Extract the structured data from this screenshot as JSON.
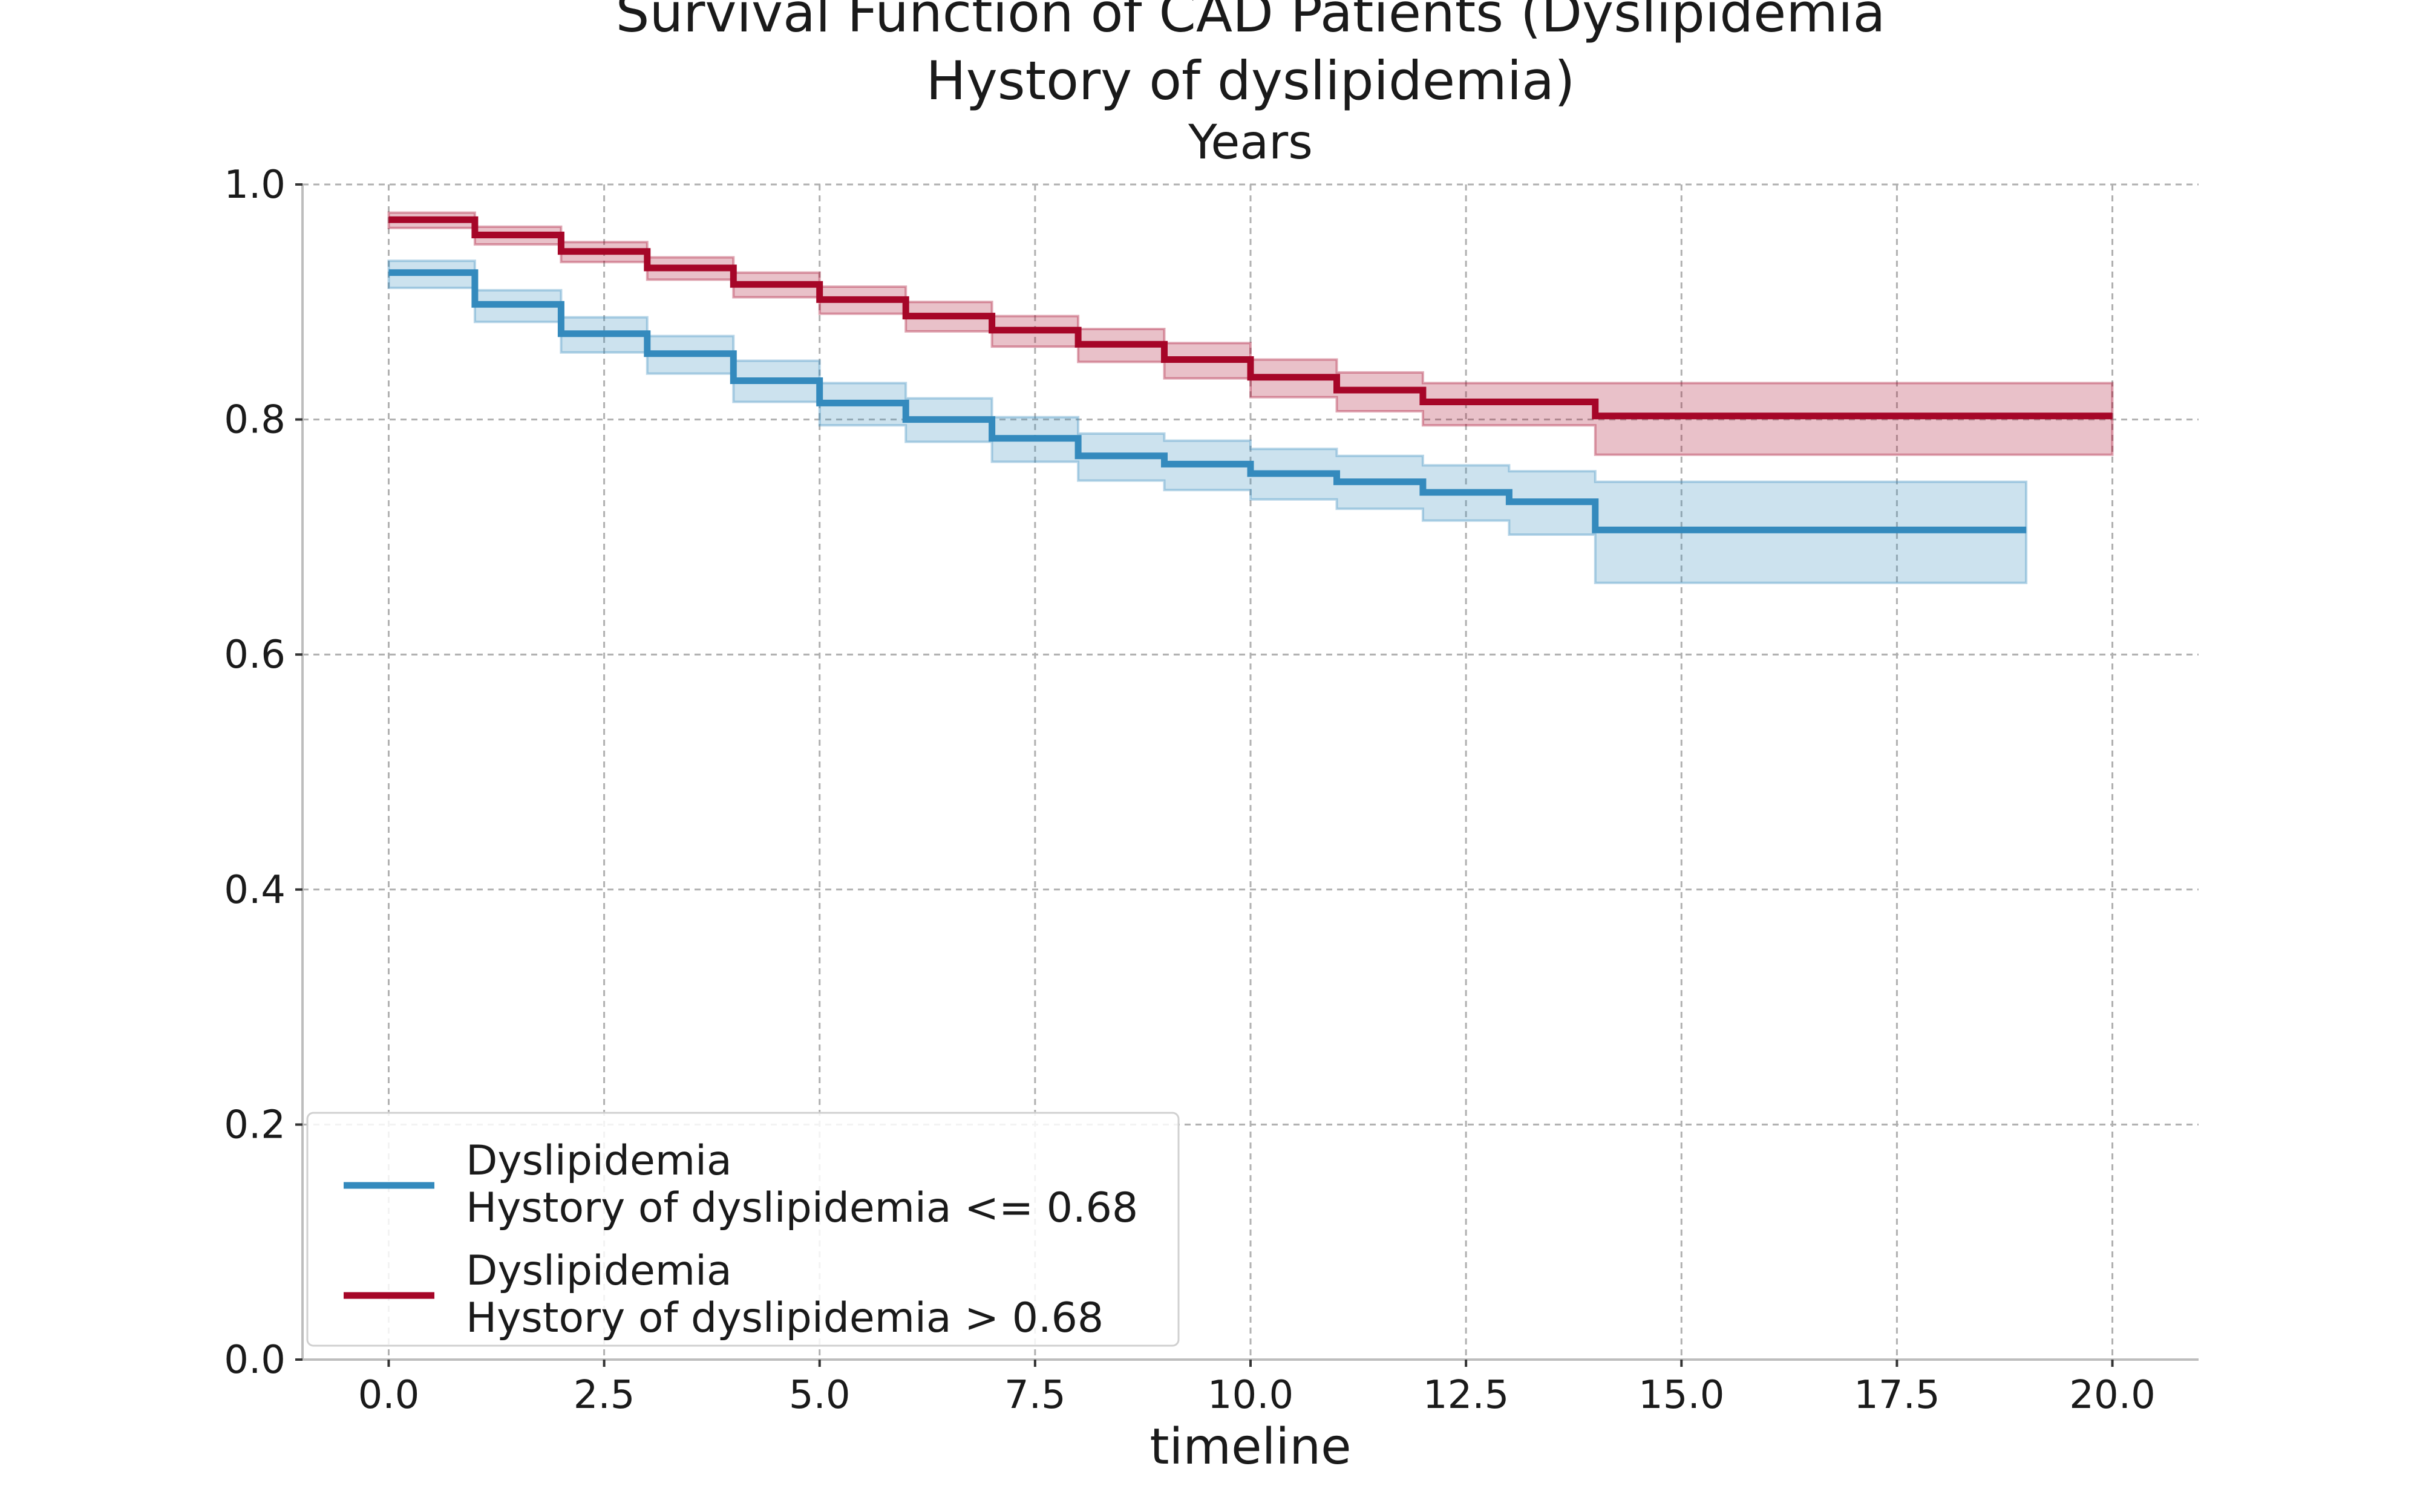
{
  "chart_data": {
    "type": "line",
    "title": "Survival Function of CAD Patients (Dyslipidemia\nHystory of dyslipidemia)",
    "subtitle": "Years",
    "xlabel": "timeline",
    "ylabel": "",
    "xlim": [
      -1.0,
      21.0
    ],
    "ylim": [
      0.0,
      1.0
    ],
    "xticks": [
      "0.0",
      "2.5",
      "5.0",
      "7.5",
      "10.0",
      "12.5",
      "15.0",
      "17.5",
      "20.0"
    ],
    "xtick_values": [
      0.0,
      2.5,
      5.0,
      7.5,
      10.0,
      12.5,
      15.0,
      17.5,
      20.0
    ],
    "yticks": [
      "0.0",
      "0.2",
      "0.4",
      "0.6",
      "0.8",
      "1.0"
    ],
    "ytick_values": [
      0.0,
      0.2,
      0.4,
      0.6,
      0.8,
      1.0
    ],
    "grid": true,
    "legend_position": "lower-left",
    "series": [
      {
        "name": "Dyslipidemia\nHystory of dyslipidemia <= 0.68",
        "color": "#348abd",
        "step": "post",
        "x": [
          0,
          1,
          2,
          3,
          4,
          5,
          6,
          7,
          8,
          9,
          10,
          11,
          12,
          13,
          14,
          19
        ],
        "y": [
          0.925,
          0.898,
          0.873,
          0.856,
          0.833,
          0.814,
          0.8,
          0.784,
          0.769,
          0.762,
          0.754,
          0.747,
          0.738,
          0.73,
          0.706,
          0.706
        ],
        "ci_lower": [
          0.912,
          0.883,
          0.857,
          0.839,
          0.815,
          0.795,
          0.781,
          0.764,
          0.748,
          0.74,
          0.732,
          0.724,
          0.714,
          0.702,
          0.661,
          0.661
        ],
        "ci_upper": [
          0.935,
          0.91,
          0.887,
          0.871,
          0.85,
          0.831,
          0.818,
          0.802,
          0.788,
          0.782,
          0.775,
          0.769,
          0.761,
          0.756,
          0.747,
          0.747
        ]
      },
      {
        "name": "Dyslipidemia\nHystory of dyslipidemia > 0.68",
        "color": "#a60628",
        "step": "post",
        "x": [
          0,
          1,
          2,
          3,
          4,
          5,
          6,
          7,
          8,
          9,
          10,
          11,
          12,
          13,
          14,
          20
        ],
        "y": [
          0.97,
          0.957,
          0.943,
          0.929,
          0.915,
          0.902,
          0.888,
          0.876,
          0.864,
          0.851,
          0.836,
          0.825,
          0.815,
          0.815,
          0.803,
          0.803
        ],
        "ci_lower": [
          0.963,
          0.949,
          0.934,
          0.919,
          0.904,
          0.89,
          0.875,
          0.862,
          0.849,
          0.835,
          0.819,
          0.807,
          0.795,
          0.795,
          0.77,
          0.77
        ],
        "ci_upper": [
          0.976,
          0.964,
          0.951,
          0.938,
          0.925,
          0.913,
          0.9,
          0.888,
          0.877,
          0.865,
          0.851,
          0.84,
          0.831,
          0.831,
          0.831,
          0.831
        ]
      }
    ]
  }
}
